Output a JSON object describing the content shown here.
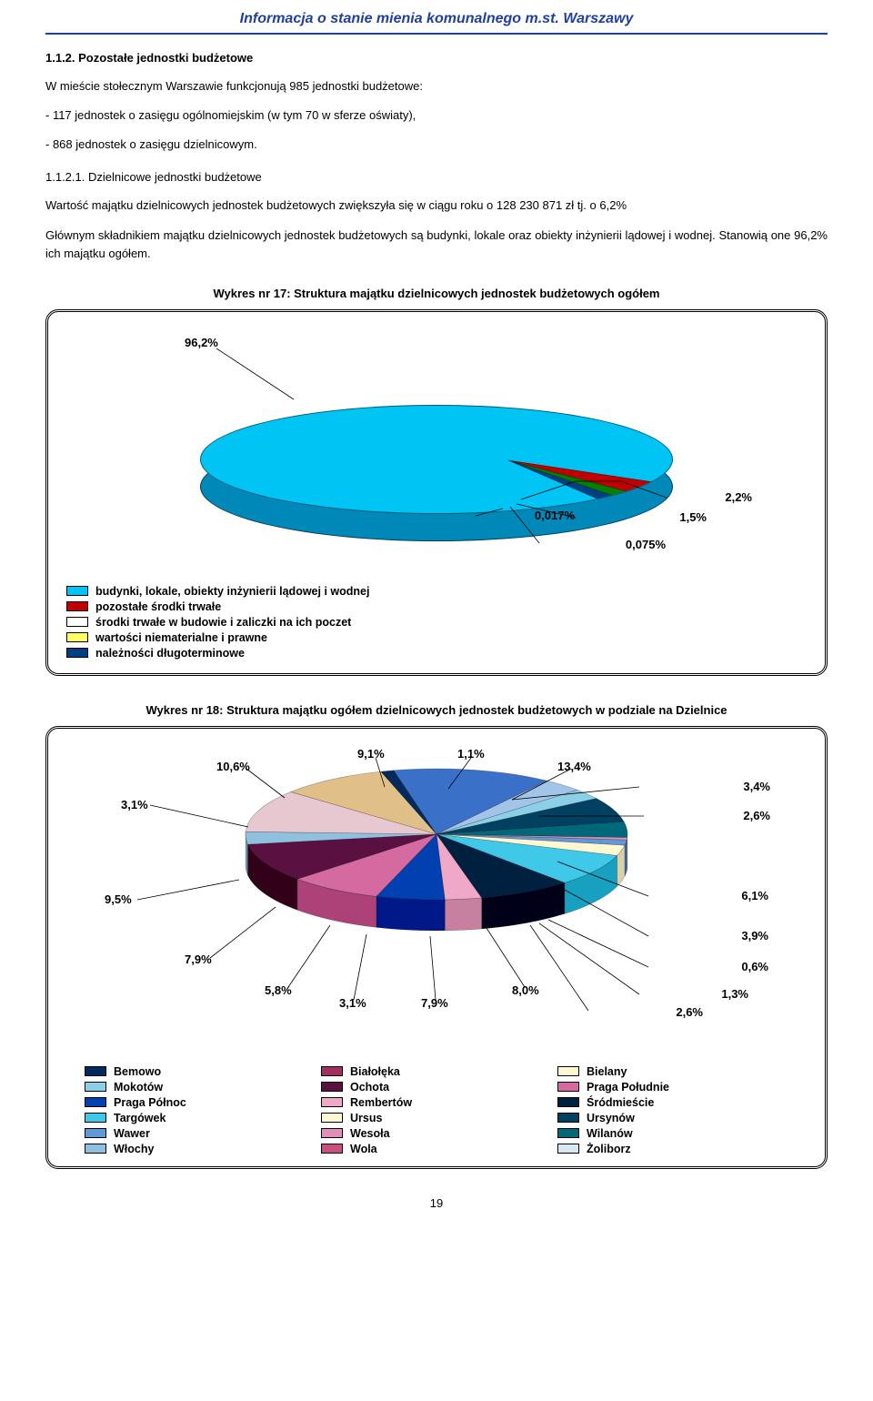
{
  "header": {
    "title": "Informacja o stanie mienia komunalnego m.st. Warszawy"
  },
  "section": {
    "number": "1.1.2. Pozostałe jednostki budżetowe",
    "p1": "W mieście stołecznym Warszawie funkcjonują 985 jednostki budżetowe:",
    "li1": "- 117 jednostek o zasięgu ogólnomiejskim (w tym 70 w sferze oświaty),",
    "li2": "- 868 jednostek o zasięgu dzielnicowym.",
    "sub_number": "1.1.2.1. Dzielnicowe jednostki budżetowe",
    "p2": "Wartość majątku dzielnicowych jednostek budżetowych zwiększyła się w ciągu roku o 128 230 871 zł tj. o 6,2%",
    "p3": "Głównym składnikiem majątku dzielnicowych jednostek budżetowych są budynki, lokale oraz obiekty inżynierii lądowej i wodnej. Stanowią one 96,2% ich majątku ogółem."
  },
  "chart1": {
    "title": "Wykres nr 17: Struktura majątku dzielnicowych jednostek budżetowych ogółem",
    "main_label": "96,2%",
    "callouts": {
      "a": "2,2%",
      "b": "1,5%",
      "c": "0,017%",
      "d": "0,075%"
    },
    "legend": [
      {
        "label": "budynki, lokale, obiekty inżynierii lądowej i wodnej",
        "color": "#00c4f4"
      },
      {
        "label": "pozostałe środki trwałe",
        "color": "#c00000"
      },
      {
        "label": "środki trwałe w budowie i zaliczki na ich poczet",
        "color": "#ffffff"
      },
      {
        "label": "wartości niematerialne i prawne",
        "color": "#ffff66"
      },
      {
        "label": "należności długoterminowe",
        "color": "#004080"
      }
    ]
  },
  "chart2": {
    "title": "Wykres nr 18: Struktura majątku ogółem dzielnicowych jednostek budżetowych w podziale na Dzielnice",
    "labels": {
      "l1": "10,6%",
      "l2": "9,1%",
      "l3": "1,1%",
      "l4": "13,4%",
      "l5": "3,4%",
      "l6": "3,1%",
      "l7": "2,6%",
      "l8": "9,5%",
      "l9": "6,1%",
      "l10": "7,9%",
      "l11": "3,9%",
      "l12": "5,8%",
      "l13": "3,1%",
      "l14": "7,9%",
      "l15": "8,0%",
      "l16": "0,6%",
      "l17": "2,6%",
      "l18": "1,3%"
    },
    "legend": [
      {
        "label": "Bemowo",
        "color": "#002a5c"
      },
      {
        "label": "Białołęka",
        "color": "#a03060"
      },
      {
        "label": "Bielany",
        "color": "#fff8d0"
      },
      {
        "label": "Mokotów",
        "color": "#8cd0e8"
      },
      {
        "label": "Ochota",
        "color": "#5a1040"
      },
      {
        "label": "Praga Południe",
        "color": "#d46aa0"
      },
      {
        "label": "Praga Północ",
        "color": "#0040b0"
      },
      {
        "label": "Rembertów",
        "color": "#f0a8c8"
      },
      {
        "label": "Śródmieście",
        "color": "#002040"
      },
      {
        "label": "Targówek",
        "color": "#40c8e8"
      },
      {
        "label": "Ursus",
        "color": "#fff8d0"
      },
      {
        "label": "Ursynów",
        "color": "#004060"
      },
      {
        "label": "Wawer",
        "color": "#6098d8"
      },
      {
        "label": "Wesoła",
        "color": "#e090b8"
      },
      {
        "label": "Wilanów",
        "color": "#006878"
      },
      {
        "label": "Włochy",
        "color": "#90c0e0"
      },
      {
        "label": "Wola",
        "color": "#c85080"
      },
      {
        "label": "Żoliborz",
        "color": "#d8e8f0"
      }
    ]
  },
  "page_number": "19"
}
